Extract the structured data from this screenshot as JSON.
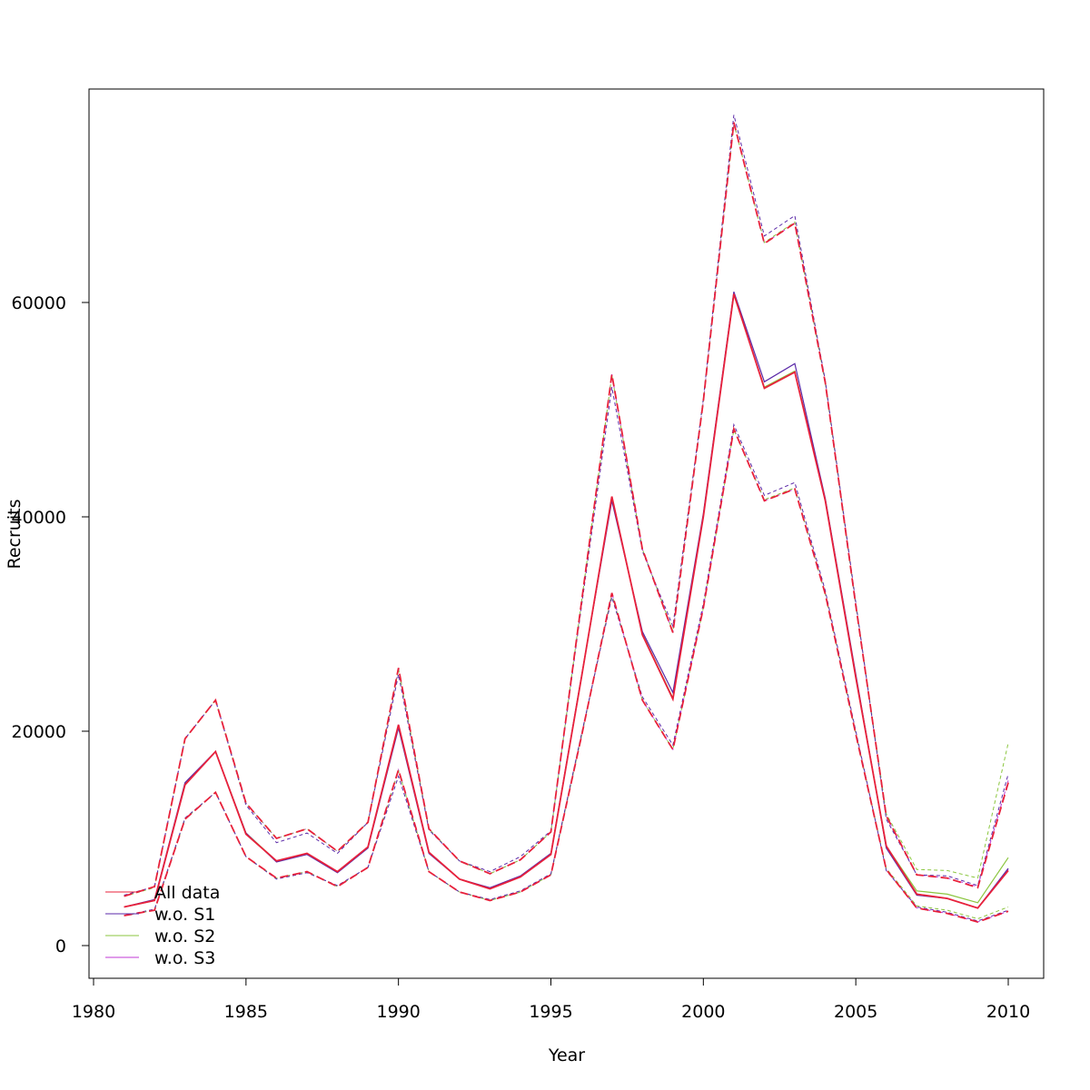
{
  "chart_data": {
    "type": "line",
    "title": "",
    "xlabel": "Year",
    "ylabel": "Recruits",
    "xlim": [
      1980,
      2011
    ],
    "ylim": [
      -3000,
      80000
    ],
    "xticks": [
      1980,
      1985,
      1990,
      1995,
      2000,
      2005,
      2010
    ],
    "xtick_labels": [
      "1980",
      "1985",
      "1990",
      "1995",
      "2000",
      "2005",
      "2010"
    ],
    "yticks": [
      0,
      20000,
      40000,
      60000
    ],
    "ytick_labels": [
      "0",
      "20000",
      "40000",
      "60000"
    ],
    "grid": false,
    "legend_position": "bottom-left",
    "x": [
      1981,
      1982,
      1983,
      1984,
      1985,
      1986,
      1987,
      1988,
      1989,
      1990,
      1991,
      1992,
      1993,
      1994,
      1995,
      1996,
      1997,
      1998,
      1999,
      2000,
      2001,
      2002,
      2003,
      2004,
      2005,
      2006,
      2007,
      2008,
      2009,
      2010
    ],
    "series": [
      {
        "name": "All data",
        "color": "#e8213b",
        "estimate": [
          3600,
          4200,
          15000,
          18100,
          10400,
          7900,
          8600,
          6900,
          9200,
          20600,
          8700,
          6200,
          5300,
          6400,
          8500,
          25000,
          41900,
          29000,
          23000,
          40000,
          60800,
          52000,
          53500,
          41500,
          25000,
          9300,
          4800,
          4400,
          3500,
          7000
        ],
        "upper": [
          4600,
          5500,
          19300,
          22900,
          13300,
          10000,
          10900,
          8800,
          11500,
          25900,
          10900,
          7900,
          6700,
          8000,
          10600,
          32000,
          53300,
          37000,
          29200,
          50800,
          76800,
          65500,
          67400,
          52500,
          31700,
          12100,
          6600,
          6300,
          5400,
          15200
        ],
        "lower": [
          2800,
          3300,
          11800,
          14300,
          8300,
          6300,
          6900,
          5500,
          7300,
          16400,
          6900,
          5000,
          4200,
          5000,
          6600,
          19500,
          32900,
          22900,
          18300,
          31500,
          48200,
          41500,
          42600,
          32800,
          19700,
          7100,
          3500,
          3000,
          2200,
          3200
        ]
      },
      {
        "name": "w.o. S1",
        "color": "#5b2aa8",
        "estimate": [
          3600,
          4300,
          15200,
          18100,
          10500,
          7800,
          8500,
          6800,
          9100,
          20300,
          8600,
          6200,
          5400,
          6500,
          8600,
          25100,
          41500,
          29300,
          23600,
          40300,
          61000,
          52600,
          54300,
          41700,
          25300,
          9100,
          4700,
          4400,
          3500,
          7200
        ],
        "upper": [
          4700,
          5500,
          19300,
          22900,
          13100,
          9600,
          10500,
          8600,
          11500,
          25300,
          10800,
          7900,
          6900,
          8300,
          10700,
          31600,
          52100,
          36800,
          29800,
          51000,
          77500,
          66200,
          68100,
          52700,
          32000,
          11800,
          6600,
          6500,
          5600,
          16000
        ],
        "lower": [
          2800,
          3400,
          11900,
          14300,
          8300,
          6200,
          6800,
          5600,
          7300,
          15800,
          6900,
          5000,
          4300,
          5100,
          6700,
          19700,
          32500,
          23200,
          18700,
          31900,
          48600,
          42000,
          43200,
          33100,
          20000,
          7000,
          3600,
          3100,
          2300,
          3300
        ]
      },
      {
        "name": "w.o. S2",
        "color": "#8bc63f",
        "estimate": [
          3600,
          4200,
          15100,
          18100,
          10500,
          7900,
          8600,
          6900,
          9200,
          20500,
          8700,
          6200,
          5300,
          6400,
          8500,
          25000,
          41800,
          29100,
          23100,
          40100,
          60700,
          52100,
          53600,
          41600,
          25100,
          9300,
          5100,
          4800,
          4000,
          8200
        ],
        "upper": [
          4600,
          5400,
          19300,
          22900,
          13300,
          10000,
          10900,
          8800,
          11500,
          25800,
          10900,
          7900,
          6700,
          8000,
          10600,
          32000,
          53200,
          37000,
          29300,
          50800,
          76700,
          65600,
          67500,
          52500,
          31800,
          12300,
          7100,
          7000,
          6300,
          18900
        ],
        "lower": [
          2800,
          3300,
          11800,
          14300,
          8300,
          6300,
          6900,
          5500,
          7300,
          16300,
          6900,
          5000,
          4200,
          5000,
          6600,
          19500,
          32800,
          22900,
          18300,
          31500,
          48100,
          41600,
          42700,
          32800,
          19800,
          7200,
          3700,
          3300,
          2500,
          3600
        ]
      },
      {
        "name": "w.o. S3",
        "color": "#c23ad6",
        "estimate": [
          3600,
          4200,
          15000,
          18100,
          10400,
          7900,
          8600,
          6900,
          9200,
          20600,
          8700,
          6200,
          5300,
          6400,
          8500,
          25000,
          41900,
          29000,
          23000,
          40100,
          60800,
          52000,
          53500,
          41500,
          25000,
          9300,
          4800,
          4400,
          3500,
          7100
        ],
        "upper": [
          4600,
          5500,
          19300,
          22900,
          13300,
          10000,
          10900,
          8800,
          11500,
          25900,
          10900,
          7900,
          6700,
          8000,
          10600,
          32000,
          53300,
          37000,
          29200,
          50800,
          76800,
          65500,
          67400,
          52500,
          31700,
          12100,
          6600,
          6300,
          5500,
          15400
        ],
        "lower": [
          2800,
          3300,
          11800,
          14300,
          8300,
          6300,
          6900,
          5500,
          7300,
          16400,
          6900,
          5000,
          4200,
          5000,
          6600,
          19500,
          32900,
          22900,
          18300,
          31500,
          48200,
          41500,
          42600,
          32800,
          19700,
          7100,
          3500,
          3000,
          2200,
          3200
        ]
      }
    ]
  }
}
